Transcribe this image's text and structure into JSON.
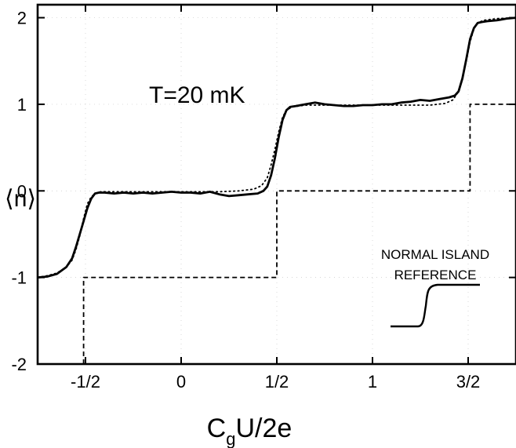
{
  "chart_data": {
    "type": "line",
    "annotation": "T=20 mK",
    "xlabel": {
      "main": "C",
      "sub": "g",
      "rest": "U/2e"
    },
    "ylabel": "⟨n⟩",
    "xlim": [
      -0.75,
      1.75
    ],
    "ylim": [
      -2,
      2.15
    ],
    "x_ticks": [
      {
        "value": -0.5,
        "label": "-1/2"
      },
      {
        "value": 0,
        "label": "0"
      },
      {
        "value": 0.5,
        "label": "1/2"
      },
      {
        "value": 1,
        "label": "1"
      },
      {
        "value": 1.5,
        "label": "3/2"
      }
    ],
    "y_ticks": [
      {
        "value": -2,
        "label": "-2"
      },
      {
        "value": -1,
        "label": "-1"
      },
      {
        "value": 0,
        "label": "0"
      },
      {
        "value": 1,
        "label": "1"
      },
      {
        "value": 2,
        "label": "2"
      }
    ],
    "series": [
      {
        "style": "solid",
        "x": [
          -0.75,
          -0.7,
          -0.65,
          -0.6,
          -0.57,
          -0.55,
          -0.53,
          -0.51,
          -0.49,
          -0.47,
          -0.45,
          -0.43,
          -0.4,
          -0.35,
          -0.3,
          -0.25,
          -0.2,
          -0.15,
          -0.1,
          -0.05,
          0,
          0.05,
          0.1,
          0.15,
          0.2,
          0.25,
          0.3,
          0.35,
          0.4,
          0.43,
          0.45,
          0.47,
          0.49,
          0.51,
          0.53,
          0.55,
          0.57,
          0.6,
          0.65,
          0.7,
          0.75,
          0.8,
          0.85,
          0.9,
          0.95,
          1,
          1.05,
          1.1,
          1.15,
          1.2,
          1.25,
          1.3,
          1.35,
          1.4,
          1.43,
          1.45,
          1.47,
          1.49,
          1.51,
          1.53,
          1.55,
          1.57,
          1.6,
          1.65,
          1.7,
          1.75
        ],
        "y": [
          -1.0,
          -0.99,
          -0.96,
          -0.88,
          -0.78,
          -0.65,
          -0.5,
          -0.35,
          -0.2,
          -0.09,
          -0.03,
          -0.02,
          -0.02,
          -0.03,
          -0.02,
          -0.03,
          -0.02,
          -0.03,
          -0.02,
          -0.01,
          -0.02,
          -0.02,
          -0.03,
          -0.01,
          -0.04,
          -0.06,
          -0.05,
          -0.04,
          -0.03,
          0.0,
          0.05,
          0.18,
          0.38,
          0.62,
          0.82,
          0.93,
          0.97,
          0.98,
          1.0,
          1.02,
          1.0,
          0.99,
          0.98,
          0.98,
          0.99,
          0.99,
          1.0,
          1.0,
          1.02,
          1.03,
          1.05,
          1.04,
          1.06,
          1.08,
          1.1,
          1.15,
          1.3,
          1.52,
          1.75,
          1.88,
          1.94,
          1.95,
          1.96,
          1.97,
          1.99,
          2.0
        ]
      },
      {
        "style": "dotted",
        "x": [
          -0.75,
          -0.7,
          -0.65,
          -0.6,
          -0.57,
          -0.55,
          -0.53,
          -0.51,
          -0.49,
          -0.47,
          -0.45,
          -0.42,
          -0.35,
          -0.25,
          -0.1,
          0,
          0.1,
          0.2,
          0.3,
          0.38,
          0.42,
          0.45,
          0.47,
          0.49,
          0.51,
          0.53,
          0.55,
          0.58,
          0.65,
          0.75,
          0.9,
          1,
          1.1,
          1.2,
          1.3,
          1.38,
          1.42,
          1.45,
          1.47,
          1.49,
          1.51,
          1.53,
          1.55,
          1.58,
          1.65,
          1.75
        ],
        "y": [
          -1.0,
          -0.98,
          -0.95,
          -0.88,
          -0.8,
          -0.68,
          -0.52,
          -0.32,
          -0.15,
          -0.07,
          -0.03,
          -0.01,
          -0.01,
          -0.01,
          -0.01,
          -0.01,
          -0.01,
          -0.01,
          0.0,
          0.02,
          0.06,
          0.15,
          0.3,
          0.48,
          0.68,
          0.85,
          0.93,
          0.97,
          0.99,
          0.99,
          0.99,
          0.99,
          0.99,
          0.99,
          0.99,
          1.01,
          1.05,
          1.15,
          1.3,
          1.5,
          1.72,
          1.87,
          1.94,
          1.97,
          1.99,
          2.0
        ]
      },
      {
        "style": "dashed",
        "x": [
          -0.51,
          -0.51,
          0.5,
          0.5,
          1.51,
          1.51,
          1.75
        ],
        "y": [
          -2,
          -1,
          -1,
          0,
          0,
          1,
          1
        ]
      }
    ]
  },
  "inset": {
    "line1": "NORMAL ISLAND",
    "line2": "REFERENCE"
  }
}
